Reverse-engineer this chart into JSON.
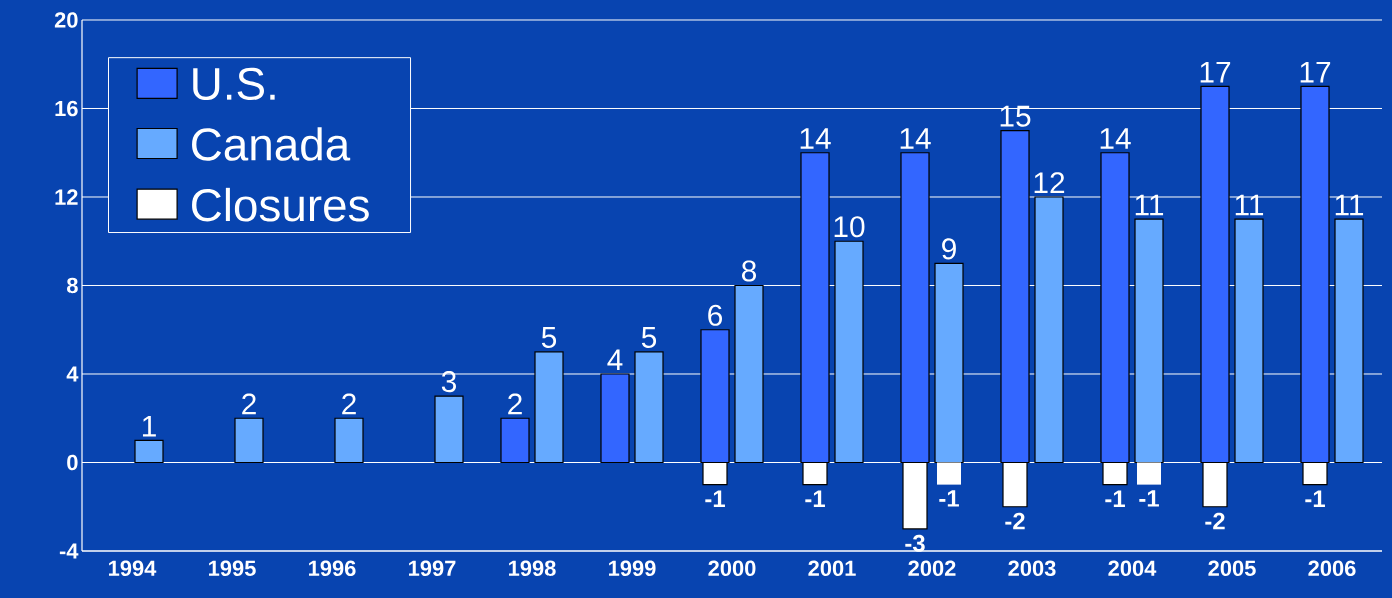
{
  "chart_data": {
    "type": "bar",
    "categories": [
      "1994",
      "1995",
      "1996",
      "1997",
      "1998",
      "1999",
      "2000",
      "2001",
      "2002",
      "2003",
      "2004",
      "2005",
      "2006"
    ],
    "series": [
      {
        "name": "U.S.",
        "color": "#3366ff",
        "values": [
          null,
          null,
          null,
          null,
          2,
          4,
          6,
          14,
          14,
          15,
          14,
          17,
          17
        ]
      },
      {
        "name": "Canada",
        "color": "#66aaff",
        "values": [
          1,
          2,
          2,
          3,
          5,
          5,
          8,
          10,
          9,
          12,
          11,
          11,
          11
        ]
      },
      {
        "name": "Closures",
        "color": "#ffffff",
        "values": [
          null,
          null,
          null,
          null,
          null,
          null,
          -1,
          -1,
          -3,
          -2,
          -1,
          -2,
          -1
        ]
      },
      {
        "color": "#ffffff",
        "values": [
          null,
          null,
          null,
          null,
          null,
          null,
          null,
          null,
          -1,
          null,
          -1,
          null,
          null
        ]
      }
    ],
    "ylim": [
      -4,
      20
    ],
    "yticks": [
      -4,
      0,
      4,
      8,
      12,
      16,
      20
    ],
    "grid": "y",
    "legend": "top left",
    "data_labels": true
  }
}
